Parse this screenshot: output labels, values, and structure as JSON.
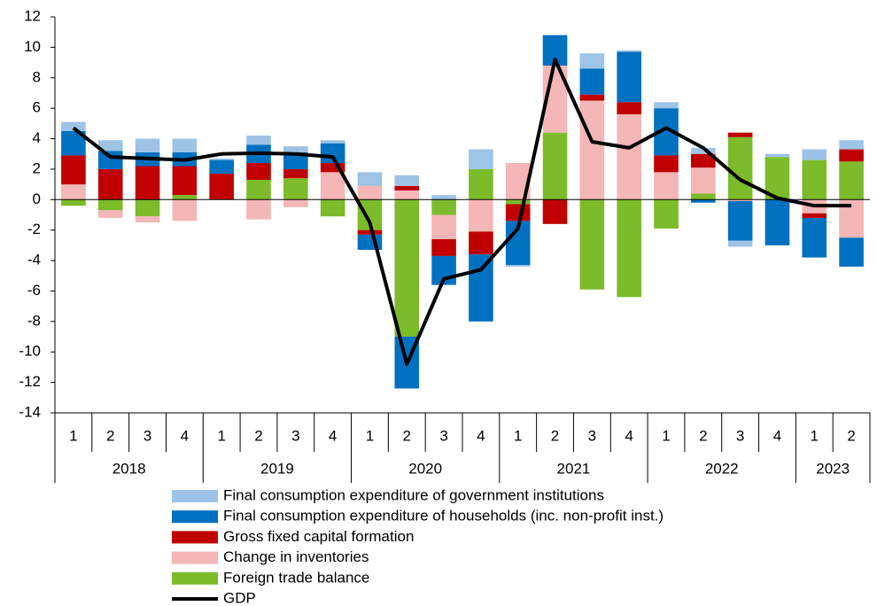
{
  "chart_data": {
    "type": "bar",
    "stacked": true,
    "categories": [
      "1",
      "2",
      "3",
      "4",
      "1",
      "2",
      "3",
      "4",
      "1",
      "2",
      "3",
      "4",
      "1",
      "2",
      "3",
      "4",
      "1",
      "2",
      "3",
      "4",
      "1",
      "2"
    ],
    "x_groups": [
      "2018",
      "2019",
      "2020",
      "2021",
      "2022",
      "2023"
    ],
    "ylim": [
      -14,
      12
    ],
    "yticks": [
      -14,
      -12,
      -10,
      -8,
      -6,
      -4,
      -2,
      0,
      2,
      4,
      6,
      8,
      10,
      12
    ],
    "series": [
      {
        "name": "Final consumption expenditure of government institutions",
        "color": "#9dc3e6",
        "values": [
          0.6,
          0.7,
          0.9,
          0.9,
          0.1,
          0.6,
          0.4,
          0.2,
          0.9,
          0.7,
          0.3,
          1.3,
          -0.1,
          0,
          1.0,
          0.1,
          0.4,
          0.4,
          -0.4,
          0.2,
          0.7,
          0.6
        ]
      },
      {
        "name": "Final consumption expenditure of households (inc. non-profit inst.)",
        "color": "#0070c0",
        "values": [
          1.6,
          1.2,
          0.9,
          0.9,
          0.9,
          1.2,
          1.1,
          1.3,
          -1.0,
          -3.4,
          -1.9,
          -4.4,
          -2.9,
          2.0,
          1.7,
          3.3,
          3.1,
          -0.2,
          -2.6,
          -3.0,
          -2.6,
          -1.9
        ]
      },
      {
        "name": "Gross fixed capital formation",
        "color": "#c00000",
        "values": [
          1.9,
          2.0,
          2.2,
          1.9,
          1.7,
          1.1,
          0.6,
          0.6,
          -0.3,
          0.3,
          -1.1,
          -1.5,
          -1.1,
          -1.6,
          0.4,
          0.8,
          1.1,
          0.9,
          0.3,
          0,
          -0.3,
          0.8
        ]
      },
      {
        "name": "Change in inventories",
        "color": "#f4b6b6",
        "values": [
          1.0,
          -0.5,
          -0.4,
          -1.4,
          0,
          -1.3,
          -0.5,
          1.8,
          0.9,
          0.6,
          -1.6,
          -2.1,
          2.4,
          4.4,
          6.5,
          5.6,
          1.8,
          1.7,
          -0.1,
          0,
          -0.9,
          -2.5
        ]
      },
      {
        "name": "Foreign trade balance",
        "color": "#7cbb2a",
        "values": [
          -0.4,
          -0.7,
          -1.1,
          0.3,
          0,
          1.3,
          1.4,
          -1.1,
          -2.0,
          -9.0,
          -1.0,
          2.0,
          -0.3,
          4.4,
          -5.9,
          -6.4,
          -1.9,
          0.4,
          4.1,
          2.8,
          2.6,
          2.5
        ]
      }
    ],
    "line_series": {
      "name": "GDP",
      "color": "#000000",
      "values": [
        4.7,
        2.8,
        2.7,
        2.6,
        3.0,
        3.05,
        3.0,
        2.8,
        -1.5,
        -10.8,
        -5.2,
        -4.6,
        -1.9,
        9.2,
        3.8,
        3.4,
        4.7,
        3.4,
        1.3,
        0.1,
        -0.4,
        -0.4
      ]
    }
  }
}
